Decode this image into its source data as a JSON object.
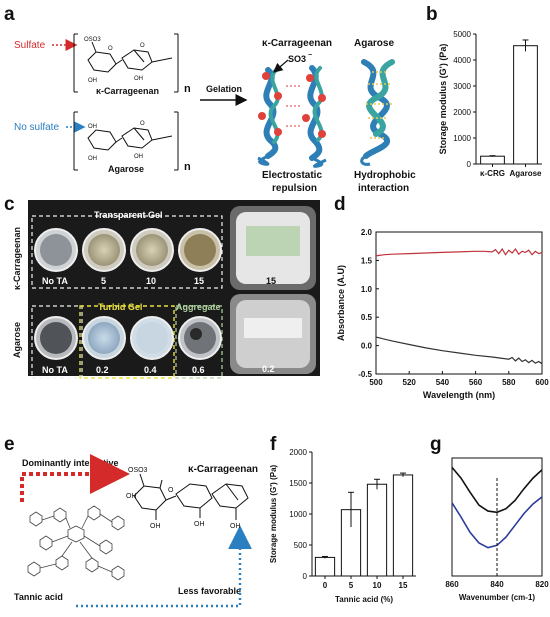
{
  "panels": {
    "a": {
      "label": "a",
      "sulfate_label": "Sulfate",
      "no_sulfate_label": "No sulfate",
      "struct1_name": "κ-Carrageenan",
      "struct2_name": "Agarose",
      "repeat_n": "n",
      "gelation_label": "Gelation",
      "helix1_title": "κ-Carrageenan",
      "helix2_title": "Agarose",
      "so3_label": "SO3",
      "so3_charge": "−",
      "helix1_caption_1": "Electrostatic",
      "helix1_caption_2": "repulsion",
      "helix2_caption_1": "Hydrophobic",
      "helix2_caption_2": "interaction",
      "chem": {
        "oso3": "OSO3",
        "oh": "OH",
        "o": "O"
      },
      "colors": {
        "sulfate": "#d42a2a",
        "no_sulfate": "#2a7fc0",
        "helix_blue": "#2d7fb6",
        "helix_teal": "#3aa4a0",
        "sulfate_ball": "#e0413a",
        "hydrophobic": "#e8c84a"
      }
    },
    "b": {
      "label": "b"
    },
    "c": {
      "label": "c",
      "row1_side_label": "κ-Carrageenan",
      "row2_side_label": "Agarose",
      "row1_box_title": "Transparent Gel",
      "row2_box_title_1": "Turbid Gel",
      "row2_box_title_2": "Aggregate",
      "row1_labels": [
        "No TA",
        "5",
        "10",
        "15"
      ],
      "row1_right_label": "15",
      "row2_labels": [
        "No TA",
        "0.2",
        "0.4",
        "0.6"
      ],
      "row2_right_label": "0.2"
    },
    "d": {
      "label": "d"
    },
    "e": {
      "label": "e",
      "dominant_label": "Dominantly interactive",
      "less_label": "Less favorable",
      "ta_label": "Tannic acid",
      "kcrg_label": "κ-Carrageenan",
      "chem": {
        "oso3": "OSO3",
        "oh": "OH",
        "o": "O"
      },
      "colors": {
        "dominant": "#d42a2a",
        "less": "#2a7fc0"
      }
    },
    "f": {
      "label": "f"
    },
    "g": {
      "label": "g"
    }
  },
  "chart_data": [
    {
      "id": "b",
      "type": "bar",
      "categories": [
        "κ-CRG",
        "Agarose"
      ],
      "values": [
        300,
        4550
      ],
      "errors": [
        20,
        220
      ],
      "title": "",
      "xlabel": "",
      "ylabel": "Storage modulus (G') (Pa)",
      "ylim": [
        0,
        5000
      ],
      "yticks": [
        0,
        1000,
        2000,
        3000,
        4000,
        5000
      ],
      "grid": false
    },
    {
      "id": "d",
      "type": "line",
      "x": [
        500,
        600
      ],
      "series": [
        {
          "color": "#c0333a",
          "x": [
            500,
            505,
            510,
            520,
            530,
            540,
            550,
            560,
            565,
            570,
            572,
            574,
            576,
            578,
            580,
            582,
            584,
            586,
            588,
            590,
            592,
            594,
            596,
            598,
            600
          ],
          "y": [
            1.58,
            1.6,
            1.61,
            1.62,
            1.63,
            1.64,
            1.65,
            1.66,
            1.66,
            1.65,
            1.69,
            1.62,
            1.7,
            1.6,
            1.68,
            1.63,
            1.7,
            1.61,
            1.66,
            1.64,
            1.68,
            1.6,
            1.66,
            1.62,
            1.64
          ]
        },
        {
          "color": "#333333",
          "x": [
            500,
            510,
            520,
            530,
            540,
            550,
            560,
            570,
            575,
            580,
            582,
            584,
            586,
            588,
            590,
            592,
            594,
            596,
            598,
            600
          ],
          "y": [
            0.15,
            0.08,
            0.02,
            -0.04,
            -0.09,
            -0.13,
            -0.17,
            -0.2,
            -0.22,
            -0.24,
            -0.21,
            -0.27,
            -0.22,
            -0.28,
            -0.25,
            -0.3,
            -0.26,
            -0.31,
            -0.28,
            -0.32
          ]
        }
      ],
      "xlabel": "Wavelength (nm)",
      "ylabel": "Absorbance (A.U)",
      "xlim": [
        500,
        600
      ],
      "ylim": [
        -0.5,
        2.0
      ],
      "xticks": [
        500,
        520,
        540,
        560,
        580,
        600
      ],
      "yticks": [
        -0.5,
        0.0,
        0.5,
        1.0,
        1.5,
        2.0
      ],
      "ytick_labels": [
        "-0.5",
        "0.0",
        "0.5",
        "1.0",
        "1.5",
        "2.0"
      ],
      "grid": false
    },
    {
      "id": "f",
      "type": "bar",
      "categories": [
        "0",
        "5",
        "10",
        "15"
      ],
      "values": [
        300,
        1070,
        1480,
        1630
      ],
      "errors": [
        15,
        280,
        80,
        30
      ],
      "xlabel": "Tannic acid (%)",
      "ylabel": "Storage modulus (G') (Pa)",
      "ylim": [
        0,
        2000
      ],
      "yticks": [
        0,
        500,
        1000,
        1500,
        2000
      ],
      "grid": false
    },
    {
      "id": "g",
      "type": "line",
      "series": [
        {
          "color": "#111111",
          "x": [
            860,
            856,
            852,
            848,
            844,
            840,
            836,
            832,
            828,
            824,
            820
          ],
          "y": [
            0.92,
            0.83,
            0.71,
            0.6,
            0.55,
            0.54,
            0.57,
            0.64,
            0.74,
            0.83,
            0.9
          ]
        },
        {
          "color": "#2b3c9c",
          "x": [
            860,
            856,
            852,
            848,
            844,
            840,
            836,
            832,
            828,
            824,
            820
          ],
          "y": [
            0.62,
            0.5,
            0.37,
            0.28,
            0.24,
            0.26,
            0.33,
            0.43,
            0.53,
            0.61,
            0.67
          ]
        }
      ],
      "reference_line_x": 840,
      "xlabel": "Wavenumber (cm-1)",
      "xlim": [
        860,
        820
      ],
      "ylim": [
        0,
        1
      ],
      "xticks": [
        860,
        840,
        820
      ],
      "grid": false
    }
  ]
}
